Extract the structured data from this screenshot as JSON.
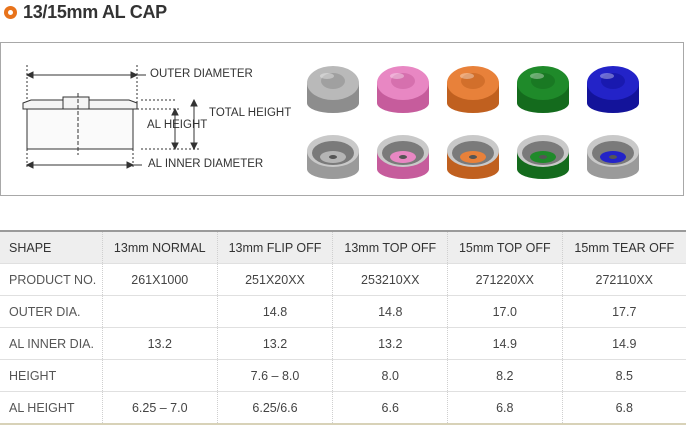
{
  "title": "13/15mm AL CAP",
  "diagram": {
    "outer_diameter": "OUTER DIAMETER",
    "total_height": "TOTAL HEIGHT",
    "al_height": "AL HEIGHT",
    "al_inner_diameter": "AL INNER DIAMETER"
  },
  "caps": [
    {
      "name": "13mm normal",
      "color": "#b9b9b9",
      "dark": "#8d8d8d"
    },
    {
      "name": "13mm flip off",
      "color": "#e887c3",
      "dark": "#c65c9c"
    },
    {
      "name": "13mm top off",
      "color": "#e8813a",
      "dark": "#c0601f"
    },
    {
      "name": "15mm top off",
      "color": "#1f8a2a",
      "dark": "#146b1d"
    },
    {
      "name": "15mm tear off",
      "color": "#2323c8",
      "dark": "#13139a"
    }
  ],
  "table": {
    "header": [
      "SHAPE",
      "13mm NORMAL",
      "13mm FLIP OFF",
      "13mm TOP OFF",
      "15mm TOP OFF",
      "15mm TEAR OFF"
    ],
    "rows": [
      [
        "PRODUCT NO.",
        "261X1000",
        "251X20XX",
        "253210XX",
        "271220XX",
        "272110XX"
      ],
      [
        "OUTER DIA.",
        "",
        "14.8",
        "14.8",
        "17.0",
        "17.7"
      ],
      [
        "AL INNER DIA.",
        "13.2",
        "13.2",
        "13.2",
        "14.9",
        "14.9"
      ],
      [
        "HEIGHT",
        "",
        "7.6 – 8.0",
        "8.0",
        "8.2",
        "8.5"
      ],
      [
        "AL HEIGHT",
        "6.25 – 7.0",
        "6.25/6.6",
        "6.6",
        "6.8",
        "6.8"
      ]
    ]
  }
}
